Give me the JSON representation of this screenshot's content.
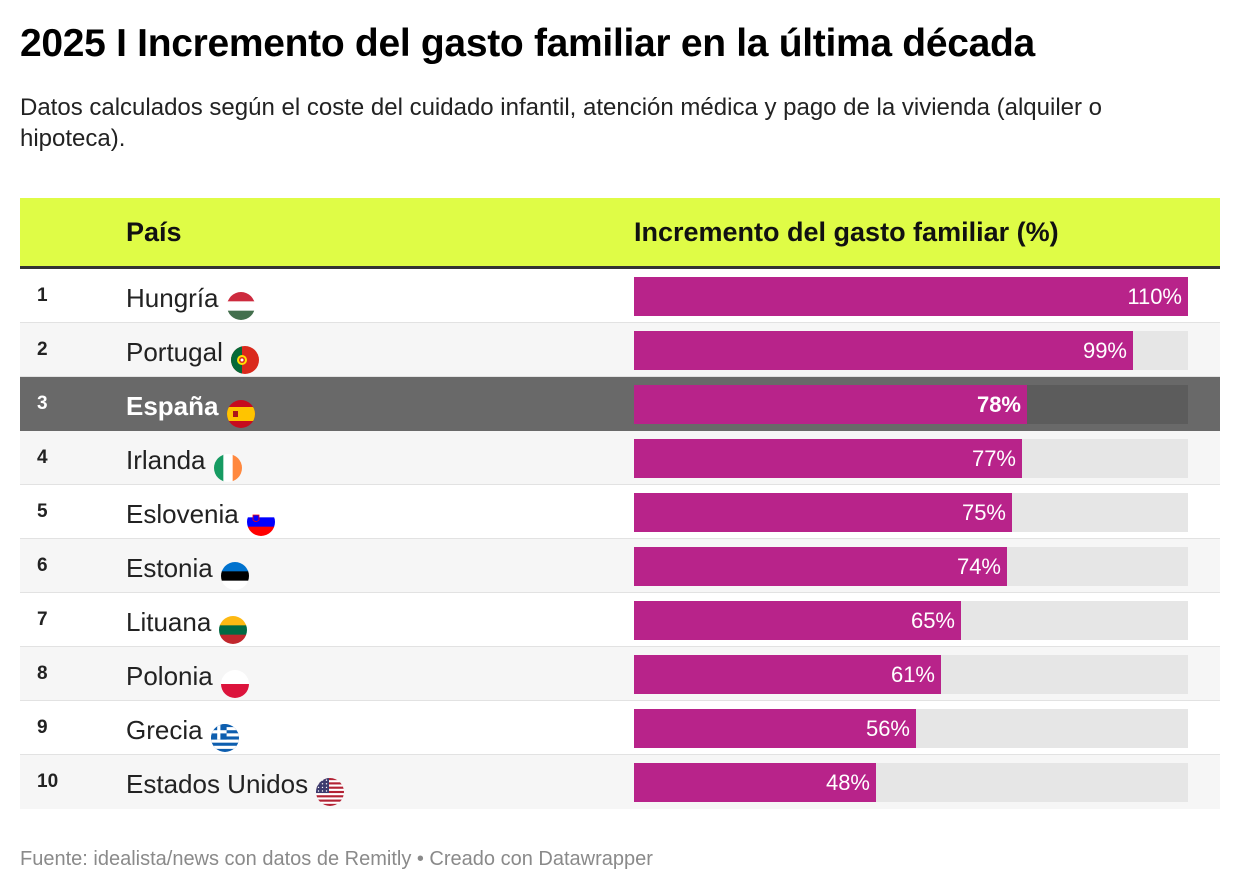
{
  "title": "2025 I Incremento del gasto familiar en la última década",
  "subtitle": "Datos calculados según el coste del cuidado infantil, atención médica y pago de la vivienda (alquiler o hipoteca).",
  "colors": {
    "header_bg": "#dffc46",
    "bar": "#b8238a",
    "track": "#e6e6e6",
    "highlight_row": "#696969"
  },
  "chart_data": {
    "type": "bar",
    "orientation": "horizontal",
    "title": "2025 I Incremento del gasto familiar en la última década",
    "columns": [
      "País",
      "Incremento del gasto familiar (%)"
    ],
    "xlim": [
      0,
      110
    ],
    "unit": "%",
    "highlight": "España",
    "rows": [
      {
        "rank": "1",
        "country": "Hungría",
        "flag": "hungary-flag-icon",
        "value": 110,
        "label": "110%"
      },
      {
        "rank": "2",
        "country": "Portugal",
        "flag": "portugal-flag-icon",
        "value": 99,
        "label": "99%"
      },
      {
        "rank": "3",
        "country": "España",
        "flag": "spain-flag-icon",
        "value": 78,
        "label": "78%"
      },
      {
        "rank": "4",
        "country": "Irlanda",
        "flag": "ireland-flag-icon",
        "value": 77,
        "label": "77%"
      },
      {
        "rank": "5",
        "country": "Eslovenia",
        "flag": "slovenia-flag-icon",
        "value": 75,
        "label": "75%"
      },
      {
        "rank": "6",
        "country": "Estonia",
        "flag": "estonia-flag-icon",
        "value": 74,
        "label": "74%"
      },
      {
        "rank": "7",
        "country": "Lituana",
        "flag": "lithuania-flag-icon",
        "value": 65,
        "label": "65%"
      },
      {
        "rank": "8",
        "country": "Polonia",
        "flag": "poland-flag-icon",
        "value": 61,
        "label": "61%"
      },
      {
        "rank": "9",
        "country": "Grecia",
        "flag": "greece-flag-icon",
        "value": 56,
        "label": "56%"
      },
      {
        "rank": "10",
        "country": "Estados Unidos",
        "flag": "usa-flag-icon",
        "value": 48,
        "label": "48%"
      }
    ]
  },
  "footer": "Fuente: idealista/news con datos de Remitly • Creado con Datawrapper"
}
